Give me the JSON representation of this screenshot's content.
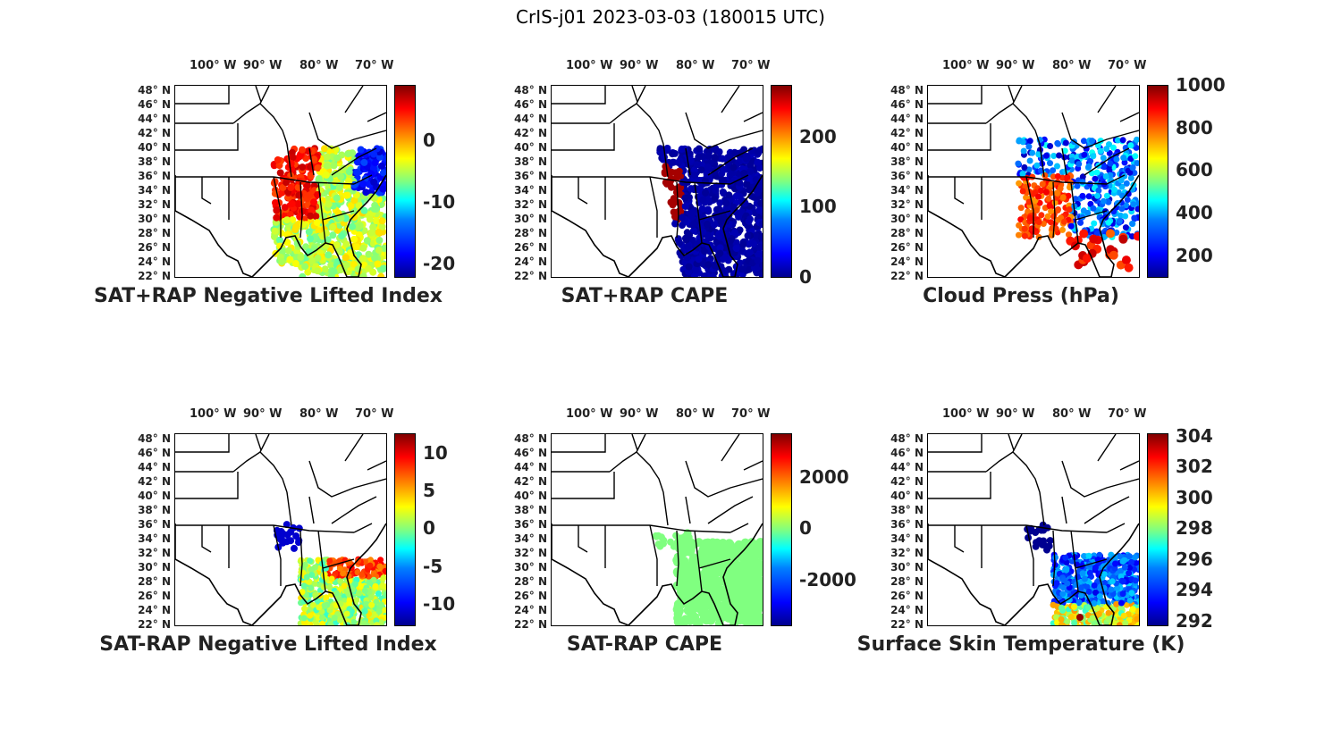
{
  "figure_title": "CrIS-j01 2023-03-03 (180015 UTC)",
  "lon_labels": [
    "100° W",
    "90° W",
    "80° W",
    "70° W"
  ],
  "lat_labels": [
    "48° N",
    "46° N",
    "44° N",
    "42° N",
    "40° N",
    "38° N",
    "36° N",
    "34° N",
    "32° N",
    "30° N",
    "28° N",
    "26° N",
    "24° N",
    "22° N"
  ],
  "panels": [
    {
      "title": "SAT+RAP Negative Lifted Index",
      "colorbar_ticks": [
        "0",
        "-10",
        "-20"
      ],
      "clim": [
        -22,
        8
      ],
      "tick_values": [
        0,
        -10,
        -20
      ],
      "field": "nli"
    },
    {
      "title": "SAT+RAP CAPE",
      "colorbar_ticks": [
        "200",
        "100",
        "0"
      ],
      "clim": [
        0,
        270
      ],
      "tick_values": [
        200,
        100,
        0
      ],
      "field": "cape"
    },
    {
      "title": "Cloud Press (hPa)",
      "colorbar_ticks": [
        "1000",
        "800",
        "600",
        "400",
        "200"
      ],
      "clim": [
        100,
        1000
      ],
      "tick_values": [
        1000,
        800,
        600,
        400,
        200
      ],
      "field": "cloud"
    },
    {
      "title": "SAT-RAP Negative Lifted Index",
      "colorbar_ticks": [
        "10",
        "5",
        "0",
        "-5",
        "-10"
      ],
      "clim": [
        -13,
        13
      ],
      "tick_values": [
        10,
        5,
        0,
        -5,
        -10
      ],
      "field": "dnli"
    },
    {
      "title": "SAT-RAP CAPE",
      "colorbar_ticks": [
        "2000",
        "0",
        "-2000"
      ],
      "clim": [
        -3800,
        3800
      ],
      "tick_values": [
        2000,
        0,
        -2000
      ],
      "field": "dcape"
    },
    {
      "title": "Surface Skin Temperature (K)",
      "colorbar_ticks": [
        "304",
        "302",
        "300",
        "298",
        "296",
        "294",
        "292"
      ],
      "clim": [
        291.8,
        304.2
      ],
      "tick_values": [
        304,
        302,
        300,
        298,
        296,
        294,
        292
      ],
      "field": "skin"
    }
  ],
  "map_extent": {
    "lon": [
      -106,
      -67
    ],
    "lat": [
      22,
      50
    ]
  },
  "colormap": "jet"
}
